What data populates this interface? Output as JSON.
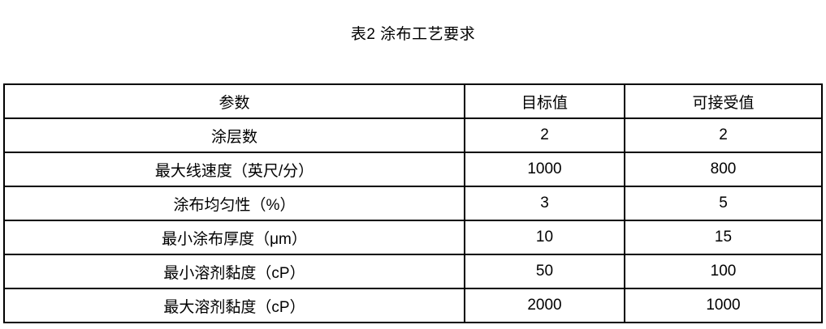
{
  "title": "表2 涂布工艺要求",
  "table": {
    "headers": [
      "参数",
      "目标值",
      "可接受值"
    ],
    "rows": [
      [
        "涂层数",
        "2",
        "2"
      ],
      [
        "最大线速度（英尺/分）",
        "1000",
        "800"
      ],
      [
        "涂布均匀性（%）",
        "3",
        "5"
      ],
      [
        "最小涂布厚度（μm）",
        "10",
        "15"
      ],
      [
        "最小溶剂黏度（cP）",
        "50",
        "100"
      ],
      [
        "最大溶剂黏度（cP）",
        "2000",
        "1000"
      ]
    ]
  },
  "colors": {
    "border": "#000000",
    "text": "#000000",
    "background": "#ffffff"
  }
}
